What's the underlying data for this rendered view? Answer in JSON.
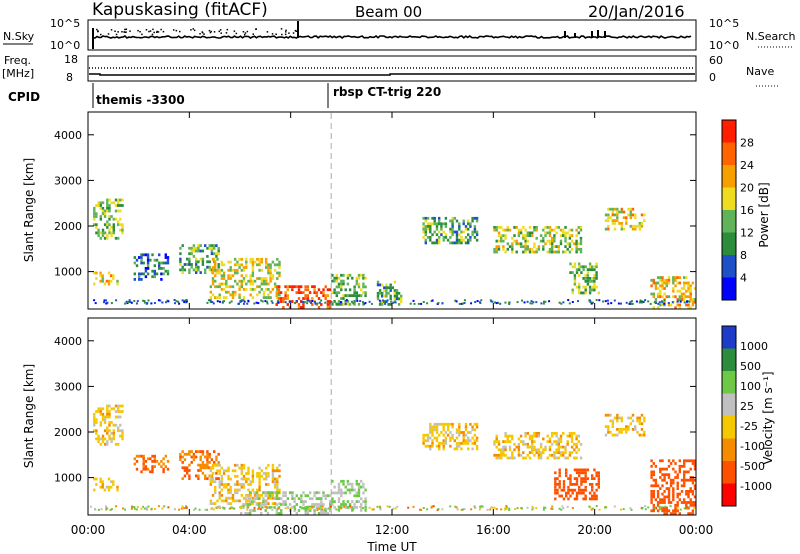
{
  "header": {
    "station": "Kapuskasing (fitACF)",
    "beam": "Beam 00",
    "date": "20/Jan/2016"
  },
  "top_panels": {
    "nsky_label": "N.Sky",
    "nsky_ticks": [
      "10^5",
      "10^0"
    ],
    "nsearch_label": "N.Search",
    "nsearch_ticks": [
      "10^5",
      "10^0"
    ],
    "freq_label": "Freq.",
    "freq_unit": "[MHz]",
    "freq_ticks": [
      "18",
      "8"
    ],
    "nave_label": "Nave",
    "nave_ticks": [
      "60",
      "0"
    ],
    "cpid_label": "CPID",
    "cpid_segments": [
      {
        "label": "themis -3300",
        "start_hour": 0.0
      },
      {
        "label": "rbsp CT-trig 220",
        "start_hour": 9.6
      }
    ]
  },
  "x_axis": {
    "label": "Time UT",
    "ticks": [
      "00:00",
      "04:00",
      "08:00",
      "12:00",
      "16:00",
      "20:00",
      "00:00"
    ],
    "range_hours": [
      0,
      24
    ],
    "marker_hour": 9.6
  },
  "power_panel": {
    "ylabel": "Slant Range [km]",
    "yticks": [
      "4000",
      "3000",
      "2000",
      "1000"
    ],
    "colorbar_label": "Power [dB]",
    "colorbar_ticks": [
      "28",
      "24",
      "20",
      "16",
      "12",
      "8",
      "4"
    ],
    "colors": [
      "#0000ff",
      "#1e50c8",
      "#2b8c3c",
      "#5fb45a",
      "#f0dc1e",
      "#f5a000",
      "#ff6400",
      "#ff1e00"
    ]
  },
  "velocity_panel": {
    "ylabel": "Slant Range [km]",
    "yticks": [
      "4000",
      "3000",
      "2000",
      "1000"
    ],
    "colorbar_label": "Velocity [m s⁻¹]",
    "colorbar_ticks": [
      "1000",
      "500",
      "100",
      "25",
      "-25",
      "-100",
      "-500",
      "-1000"
    ],
    "colors": [
      "#1e3cc8",
      "#2b8c3c",
      "#6cc846",
      "#c0c0c0",
      "#f5c800",
      "#f58c00",
      "#ff5000",
      "#ff0000"
    ]
  },
  "chart_data": {
    "type": "heatmap",
    "title": "Kapuskasing (fitACF)",
    "xlabel": "Time UT",
    "ylabel": "Slant Range [km]",
    "xlim_hours": [
      0,
      24
    ],
    "ylim_km": [
      180,
      4500
    ],
    "power_echo_regions": [
      {
        "t0": 0.2,
        "t1": 1.4,
        "r0": 1700,
        "r1": 2600,
        "power_db": 14
      },
      {
        "t0": 0.2,
        "t1": 1.2,
        "r0": 700,
        "r1": 1000,
        "power_db": 20
      },
      {
        "t0": 1.8,
        "t1": 3.2,
        "r0": 800,
        "r1": 1400,
        "power_db": 8
      },
      {
        "t0": 3.6,
        "t1": 5.2,
        "r0": 950,
        "r1": 1600,
        "power_db": 12
      },
      {
        "t0": 4.8,
        "t1": 7.6,
        "r0": 400,
        "r1": 1300,
        "power_db": 18
      },
      {
        "t0": 7.4,
        "t1": 9.6,
        "r0": 180,
        "r1": 700,
        "power_db": 28
      },
      {
        "t0": 9.6,
        "t1": 11.0,
        "r0": 250,
        "r1": 950,
        "power_db": 14
      },
      {
        "t0": 11.4,
        "t1": 12.4,
        "r0": 250,
        "r1": 800,
        "power_db": 12
      },
      {
        "t0": 13.2,
        "t1": 15.4,
        "r0": 1600,
        "r1": 2200,
        "power_db": 12
      },
      {
        "t0": 16.0,
        "t1": 19.5,
        "r0": 1400,
        "r1": 2000,
        "power_db": 16
      },
      {
        "t0": 19.0,
        "t1": 20.2,
        "r0": 500,
        "r1": 1200,
        "power_db": 14
      },
      {
        "t0": 20.4,
        "t1": 22.0,
        "r0": 1900,
        "r1": 2400,
        "power_db": 20
      },
      {
        "t0": 22.2,
        "t1": 24.0,
        "r0": 180,
        "r1": 900,
        "power_db": 20
      }
    ],
    "velocity_echo_regions": [
      {
        "t0": 0.2,
        "t1": 1.4,
        "r0": 1700,
        "r1": 2600,
        "velocity": 0
      },
      {
        "t0": 0.2,
        "t1": 1.2,
        "r0": 700,
        "r1": 1000,
        "velocity": 0
      },
      {
        "t0": 1.8,
        "t1": 3.2,
        "r0": 1100,
        "r1": 1500,
        "velocity": -100
      },
      {
        "t0": 3.6,
        "t1": 5.2,
        "r0": 950,
        "r1": 1600,
        "velocity": -100
      },
      {
        "t0": 4.8,
        "t1": 7.6,
        "r0": 400,
        "r1": 1300,
        "velocity": 0
      },
      {
        "t0": 6.0,
        "t1": 9.6,
        "r0": 180,
        "r1": 700,
        "velocity": 100
      },
      {
        "t0": 9.6,
        "t1": 11.0,
        "r0": 250,
        "r1": 950,
        "velocity": 100
      },
      {
        "t0": 13.2,
        "t1": 15.4,
        "r0": 1600,
        "r1": 2200,
        "velocity": 0
      },
      {
        "t0": 16.0,
        "t1": 19.5,
        "r0": 1400,
        "r1": 2000,
        "velocity": 0
      },
      {
        "t0": 18.4,
        "t1": 20.2,
        "r0": 500,
        "r1": 1200,
        "velocity": -300
      },
      {
        "t0": 20.4,
        "t1": 22.0,
        "r0": 1900,
        "r1": 2400,
        "velocity": 0
      },
      {
        "t0": 22.2,
        "t1": 24.0,
        "r0": 180,
        "r1": 1400,
        "velocity": -300
      }
    ]
  }
}
